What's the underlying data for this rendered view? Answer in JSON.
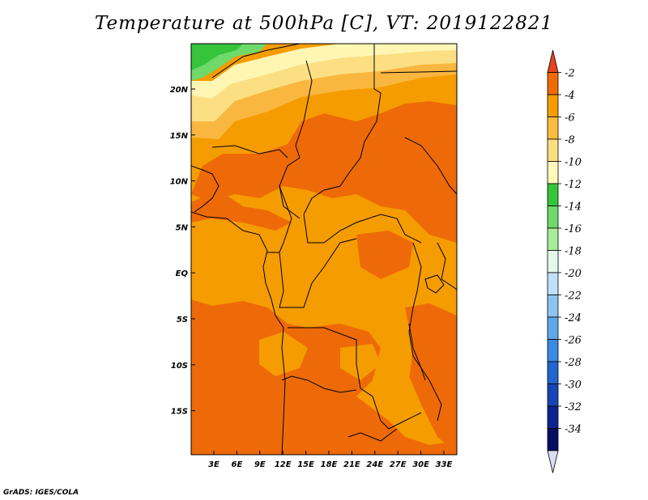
{
  "title": "Temperature at 500hPa [C], VT: 2019122821",
  "credit": "GrADS: IGES/COLA",
  "map": {
    "lat_labels": [
      "20N",
      "15N",
      "10N",
      "5N",
      "EQ",
      "5S",
      "10S",
      "15S"
    ],
    "lon_labels": [
      "3E",
      "6E",
      "9E",
      "12E",
      "15E",
      "18E",
      "21E",
      "24E",
      "27E",
      "30E",
      "33E"
    ]
  },
  "colorbar": {
    "labels": [
      "-2",
      "-4",
      "-6",
      "-8",
      "-10",
      "-12",
      "-14",
      "-16",
      "-18",
      "-20",
      "-22",
      "-24",
      "-26",
      "-28",
      "-30",
      "-32",
      "-34"
    ],
    "colors": [
      "#e8431e",
      "#f06a04",
      "#f59c00",
      "#fbbd3f",
      "#fcde82",
      "#fff8b8",
      "#36c43a",
      "#6fd96a",
      "#a8eb9a",
      "#e4f8ec",
      "#bfe0fa",
      "#8ec3f1",
      "#5ea8e9",
      "#3a8ae0",
      "#2066cc",
      "#1645b5",
      "#0c2491",
      "#060e62",
      "#dcdcf2"
    ]
  },
  "fill_colors": {
    "dark_orange": "#ee6a08",
    "orange": "#f59c00",
    "light_orange": "#f9b740",
    "pale_yellow": "#fcdf82",
    "cream": "#fff6b4",
    "light_green": "#6fd96a",
    "green": "#36c43a"
  }
}
